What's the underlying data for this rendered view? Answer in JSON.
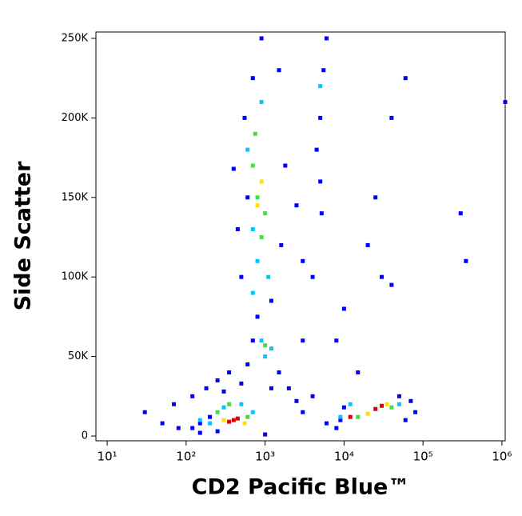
{
  "chart_data": {
    "type": "scatter",
    "x_label": "CD2 Pacific Blue™",
    "y_label": "Side Scatter",
    "xscale": "log",
    "xlim": [
      7.2,
      1100000
    ],
    "xticks": [
      {
        "value": 10,
        "label": "10¹"
      },
      {
        "value": 100,
        "label": "10²"
      },
      {
        "value": 1000,
        "label": "10³"
      },
      {
        "value": 10000,
        "label": "10⁴"
      },
      {
        "value": 100000,
        "label": "10⁵"
      },
      {
        "value": 1000000,
        "label": "10⁶"
      }
    ],
    "ylim": [
      -3000,
      254000
    ],
    "yticks": [
      0,
      {
        "value": 50000,
        "label": "50K"
      },
      {
        "value": 100000,
        "label": "100K"
      },
      {
        "value": 150000,
        "label": "150K"
      },
      {
        "value": 200000,
        "label": "200K"
      },
      {
        "value": 250000,
        "label": "250K"
      }
    ],
    "series": [
      {
        "color": "#0000ff",
        "x": [
          30,
          50,
          70,
          80,
          120,
          150,
          180,
          200,
          250,
          300,
          350,
          500,
          600,
          700,
          800,
          1500,
          2000,
          2500,
          3000,
          4000,
          6000,
          8000,
          50000,
          60000,
          70000,
          5000,
          5500,
          4500,
          6000,
          5000,
          5200,
          4000,
          8000,
          20000,
          25000,
          30000,
          40000,
          300000,
          350000,
          1100000,
          60000,
          40000,
          500,
          600,
          550,
          700,
          1500,
          1800,
          1600,
          900,
          1200,
          450,
          400,
          2500,
          3000,
          10000,
          15000,
          3000,
          150,
          250,
          120,
          1200,
          10000,
          9000,
          80000,
          1000
        ],
        "y": [
          15000,
          8000,
          20000,
          5000,
          25000,
          2000,
          30000,
          12000,
          35000,
          28000,
          40000,
          33000,
          45000,
          60000,
          75000,
          40000,
          30000,
          22000,
          15000,
          25000,
          8000,
          5000,
          25000,
          10000,
          22000,
          200000,
          230000,
          180000,
          250000,
          160000,
          140000,
          100000,
          60000,
          120000,
          150000,
          100000,
          95000,
          140000,
          110000,
          210000,
          225000,
          200000,
          100000,
          150000,
          200000,
          225000,
          230000,
          170000,
          120000,
          250000,
          85000,
          130000,
          168000,
          145000,
          110000,
          80000,
          40000,
          60000,
          8000,
          3000,
          5000,
          30000,
          18000,
          10000,
          15000,
          1000
        ]
      },
      {
        "color": "#00c8ff",
        "x": [
          300,
          200,
          500,
          700,
          150,
          1000,
          900,
          1200,
          800,
          700,
          1100,
          600,
          900,
          700,
          12000,
          50000,
          9000,
          5000
        ],
        "y": [
          18000,
          8000,
          20000,
          15000,
          10000,
          50000,
          60000,
          55000,
          110000,
          130000,
          100000,
          180000,
          210000,
          90000,
          20000,
          20000,
          12000,
          220000
        ]
      },
      {
        "color": "#40e040",
        "x": [
          250,
          600,
          350,
          1000,
          800,
          900,
          700,
          1000,
          750,
          15000,
          40000
        ],
        "y": [
          15000,
          12000,
          20000,
          57000,
          150000,
          125000,
          170000,
          140000,
          190000,
          12000,
          18000
        ]
      },
      {
        "color": "#ffe000",
        "x": [
          300,
          550,
          800,
          900,
          20000,
          35000
        ],
        "y": [
          10000,
          8000,
          145000,
          160000,
          14000,
          20000
        ]
      },
      {
        "color": "#e00000",
        "x": [
          400,
          350,
          450,
          12000,
          25000,
          30000
        ],
        "y": [
          10000,
          9000,
          11000,
          12000,
          17000,
          19000
        ]
      }
    ]
  }
}
